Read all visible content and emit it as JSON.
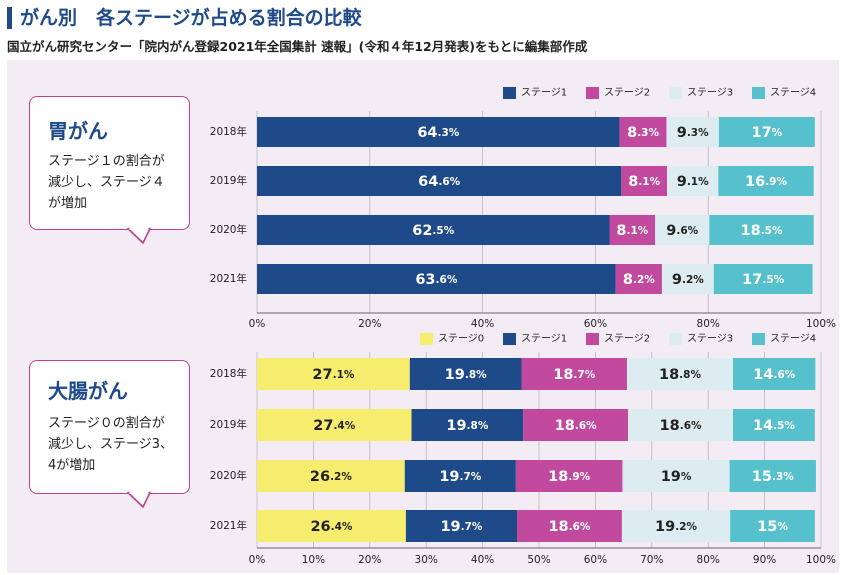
{
  "header": {
    "title": "がん別　各ステージが占める割合の比較",
    "subtitle": "国立がん研究センター「院内がん登録2021年全国集計 速報」(令和４年12月発表)をもとに編集部作成"
  },
  "colors": {
    "ステージ0": "#f6ec6e",
    "ステージ1": "#1e4a8a",
    "ステージ2": "#c14a9e",
    "ステージ3": "#dcecf0",
    "ステージ4": "#56c0cc",
    "callout_border": "#c2408f",
    "panel_bg": "#f3ecf5"
  },
  "callouts": [
    {
      "title": "胃がん",
      "lines": [
        "ステージ１の割合が",
        "減少し、ステージ４",
        "が増加"
      ]
    },
    {
      "title": "大腸がん",
      "lines": [
        "ステージ０の割合が",
        "減少し、ステージ3、",
        "4が増加"
      ]
    }
  ],
  "chart_data": [
    {
      "type": "bar",
      "orientation": "horizontal",
      "stacked": true,
      "title": "胃がん",
      "categories": [
        "2018年",
        "2019年",
        "2020年",
        "2021年"
      ],
      "series": [
        {
          "name": "ステージ1",
          "values": [
            64.3,
            64.6,
            62.5,
            63.6
          ],
          "labels": [
            "64.3%",
            "64.6%",
            "62.5%",
            "63.6%"
          ]
        },
        {
          "name": "ステージ2",
          "values": [
            8.3,
            8.1,
            8.1,
            8.2
          ],
          "labels": [
            "8.3%",
            "8.1%",
            "8.1%",
            "8.2%"
          ]
        },
        {
          "name": "ステージ3",
          "values": [
            9.3,
            9.1,
            9.6,
            9.2
          ],
          "labels": [
            "9.3%",
            "9.1%",
            "9.6%",
            "9.2%"
          ]
        },
        {
          "name": "ステージ4",
          "values": [
            17,
            16.9,
            18.5,
            17.5
          ],
          "labels": [
            "17%",
            "16.9%",
            "18.5%",
            "17.5%"
          ]
        }
      ],
      "xlim": [
        0,
        100
      ],
      "xticks": [
        "0%",
        "20%",
        "40%",
        "60%",
        "80%",
        "100%"
      ],
      "legend": "top-right",
      "grid": true
    },
    {
      "type": "bar",
      "orientation": "horizontal",
      "stacked": true,
      "title": "大腸がん",
      "categories": [
        "2018年",
        "2019年",
        "2020年",
        "2021年"
      ],
      "series": [
        {
          "name": "ステージ0",
          "values": [
            27.1,
            27.4,
            26.2,
            26.4
          ],
          "labels": [
            "27.1%",
            "27.4%",
            "26.2%",
            "26.4%"
          ]
        },
        {
          "name": "ステージ1",
          "values": [
            19.8,
            19.8,
            19.7,
            19.7
          ],
          "labels": [
            "19.8%",
            "19.8%",
            "19.7%",
            "19.7%"
          ]
        },
        {
          "name": "ステージ2",
          "values": [
            18.7,
            18.6,
            18.9,
            18.6
          ],
          "labels": [
            "18.7%",
            "18.6%",
            "18.9%",
            "18.6%"
          ]
        },
        {
          "name": "ステージ3",
          "values": [
            18.8,
            18.6,
            19,
            19.2
          ],
          "labels": [
            "18.8%",
            "18.6%",
            "19%",
            "19.2%"
          ]
        },
        {
          "name": "ステージ4",
          "values": [
            14.6,
            14.5,
            15.3,
            15
          ],
          "labels": [
            "14.6%",
            "14.5%",
            "15.3%",
            "15%"
          ]
        }
      ],
      "xlim": [
        0,
        100
      ],
      "xticks": [
        "0%",
        "10%",
        "20%",
        "30%",
        "40%",
        "50%",
        "60%",
        "70%",
        "80%",
        "90%",
        "100%"
      ],
      "legend": "top-right",
      "grid": true
    }
  ]
}
